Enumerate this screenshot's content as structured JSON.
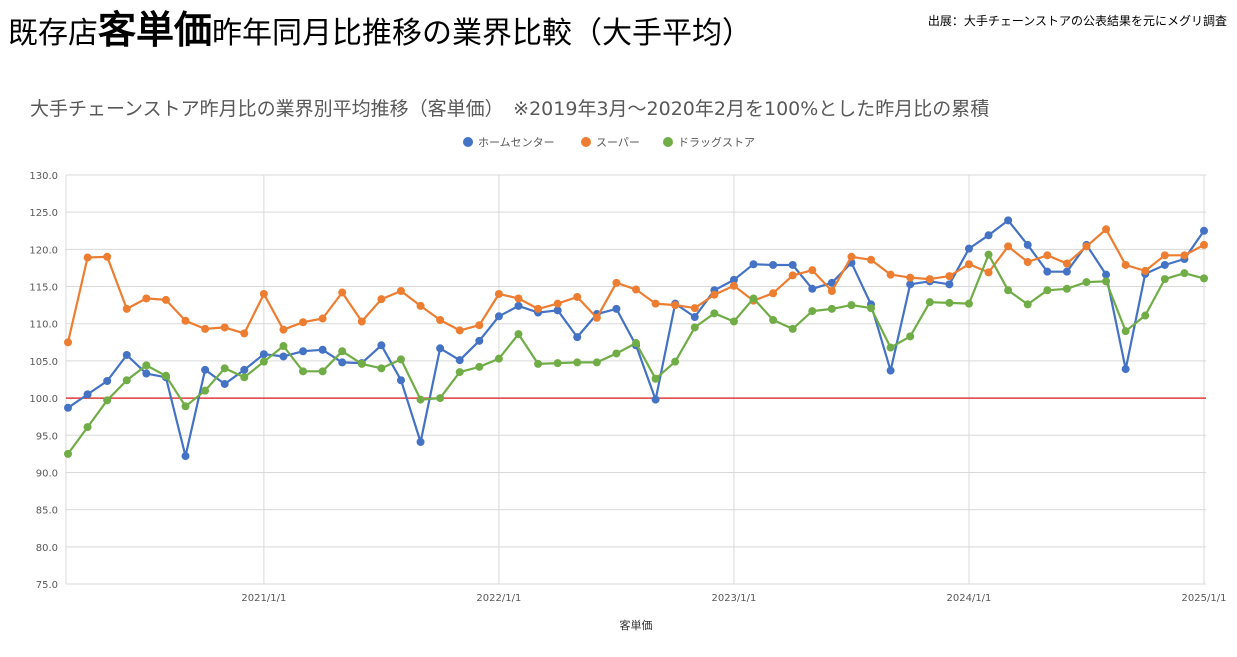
{
  "header": {
    "title_pre": "既存店",
    "title_em": "客単価",
    "title_post": "昨年同月比推移の業界比較（大手平均）",
    "source": "出展：大手チェーンストアの公表結果を元にメグリ調査"
  },
  "colors": {
    "home_center": "#4472C4",
    "super": "#ED7D31",
    "drug_store": "#70AD47",
    "baseline": "#E03C3C",
    "grid": "#D9D9D9",
    "text": "#595959"
  },
  "chart_data": {
    "type": "line",
    "title": "大手チェーンストア昨月比の業界別平均推移（客単価）　※2019年3月～2020年2月を100%とした昨月比の累積",
    "xlabel": "客単価",
    "ylabel": "",
    "ylim": [
      75,
      130
    ],
    "yticks": [
      "130.0",
      "125.0",
      "120.0",
      "115.0",
      "110.0",
      "105.0",
      "100.0",
      "95.0",
      "90.0",
      "85.0",
      "80.0",
      "75.0"
    ],
    "x_start": "2020/3",
    "x_ticks": [
      {
        "label": "2021/1/1",
        "index": 10
      },
      {
        "label": "2022/1/1",
        "index": 22
      },
      {
        "label": "2023/1/1",
        "index": 34
      },
      {
        "label": "2024/1/1",
        "index": 46
      },
      {
        "label": "2025/1/1",
        "index": 58
      }
    ],
    "reference_line": 100,
    "legend_position": "top-center",
    "grid": true,
    "series": [
      {
        "name": "ホームセンター",
        "color": "#4472C4",
        "values": [
          98.7,
          100.5,
          102.3,
          105.8,
          103.3,
          102.8,
          92.2,
          103.8,
          101.9,
          103.8,
          105.9,
          105.6,
          106.3,
          106.5,
          104.8,
          104.7,
          107.1,
          102.4,
          94.1,
          106.7,
          105.1,
          107.7,
          111.0,
          112.4,
          111.5,
          111.8,
          108.2,
          111.3,
          112.0,
          107.1,
          99.8,
          112.7,
          110.9,
          114.5,
          115.9,
          118.0,
          117.9,
          117.9,
          114.7,
          115.5,
          118.2,
          112.6,
          103.7,
          115.3,
          115.7,
          115.3,
          120.1,
          121.9,
          123.9,
          120.6,
          117.0,
          117.0,
          120.6,
          116.6,
          103.9,
          116.7,
          117.9,
          118.7,
          122.5
        ]
      },
      {
        "name": "スーパー",
        "color": "#ED7D31",
        "values": [
          107.5,
          118.9,
          119.0,
          112.0,
          113.4,
          113.2,
          110.4,
          109.3,
          109.5,
          108.7,
          114.0,
          109.2,
          110.2,
          110.7,
          114.2,
          110.3,
          113.3,
          114.4,
          112.4,
          110.5,
          109.1,
          109.8,
          114.0,
          113.4,
          112.0,
          112.7,
          113.6,
          110.8,
          115.5,
          114.6,
          112.7,
          112.5,
          112.1,
          113.9,
          115.1,
          113.1,
          114.1,
          116.5,
          117.2,
          114.4,
          119.0,
          118.6,
          116.6,
          116.2,
          116.0,
          116.4,
          118.0,
          116.9,
          120.4,
          118.3,
          119.2,
          118.1,
          120.4,
          122.7,
          117.9,
          117.1,
          119.2,
          119.2,
          120.6
        ]
      },
      {
        "name": "ドラッグストア",
        "color": "#70AD47",
        "values": [
          92.5,
          96.1,
          99.7,
          102.4,
          104.4,
          103.0,
          98.9,
          101.0,
          104.0,
          102.8,
          104.9,
          107.0,
          103.6,
          103.6,
          106.3,
          104.6,
          104.0,
          105.2,
          99.8,
          100.0,
          103.5,
          104.2,
          105.3,
          108.6,
          104.6,
          104.7,
          104.8,
          104.8,
          106.0,
          107.4,
          102.6,
          104.9,
          109.5,
          111.4,
          110.3,
          113.4,
          110.5,
          109.3,
          111.7,
          112.0,
          112.5,
          112.1,
          106.8,
          108.3,
          112.9,
          112.8,
          112.7,
          119.3,
          114.5,
          112.6,
          114.5,
          114.7,
          115.6,
          115.7,
          109.0,
          111.1,
          116.0,
          116.8,
          116.1
        ]
      }
    ]
  }
}
